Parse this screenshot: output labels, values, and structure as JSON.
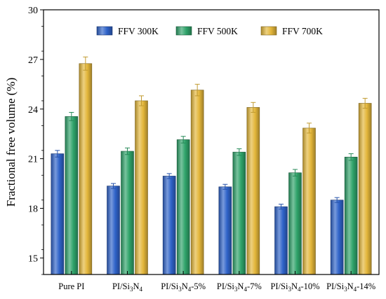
{
  "chart_data": {
    "type": "bar",
    "title": "",
    "xlabel": "",
    "ylabel": "Fractional free volume (%)",
    "ylim": [
      14,
      30
    ],
    "yticks": [
      15,
      18,
      21,
      24,
      27,
      30
    ],
    "grid": false,
    "legend_position": "top-right",
    "categories": [
      {
        "base": "Pure PI",
        "si": "",
        "sub3": "",
        "n": "",
        "sub4": "",
        "suffix": ""
      },
      {
        "base": "PI/Si",
        "si": "",
        "sub3": "3",
        "n": "N",
        "sub4": "4",
        "suffix": ""
      },
      {
        "base": "PI/Si",
        "si": "",
        "sub3": "3",
        "n": "N",
        "sub4": "4",
        "suffix": "-5%"
      },
      {
        "base": "PI/Si",
        "si": "",
        "sub3": "3",
        "n": "N",
        "sub4": "4",
        "suffix": "-7%"
      },
      {
        "base": "PI/Si",
        "si": "",
        "sub3": "3",
        "n": "N",
        "sub4": "4",
        "suffix": "-10%"
      },
      {
        "base": "PI/Si",
        "si": "",
        "sub3": "3",
        "n": "N",
        "sub4": "4",
        "suffix": "-14%"
      }
    ],
    "series": [
      {
        "name": "FFV 300K",
        "color": "#2f63c9",
        "values": [
          21.3,
          19.35,
          19.95,
          19.3,
          18.1,
          18.5
        ],
        "errors": [
          0.2,
          0.15,
          0.15,
          0.15,
          0.15,
          0.15
        ]
      },
      {
        "name": "FFV 500K",
        "color": "#2fa36a",
        "values": [
          23.55,
          21.45,
          22.15,
          21.4,
          20.15,
          21.1
        ],
        "errors": [
          0.25,
          0.2,
          0.2,
          0.2,
          0.2,
          0.2
        ]
      },
      {
        "name": "FFV 700K",
        "color": "#e3b63a",
        "values": [
          26.75,
          24.5,
          25.15,
          24.1,
          22.85,
          24.35
        ],
        "errors": [
          0.4,
          0.3,
          0.35,
          0.3,
          0.3,
          0.3
        ]
      }
    ]
  }
}
